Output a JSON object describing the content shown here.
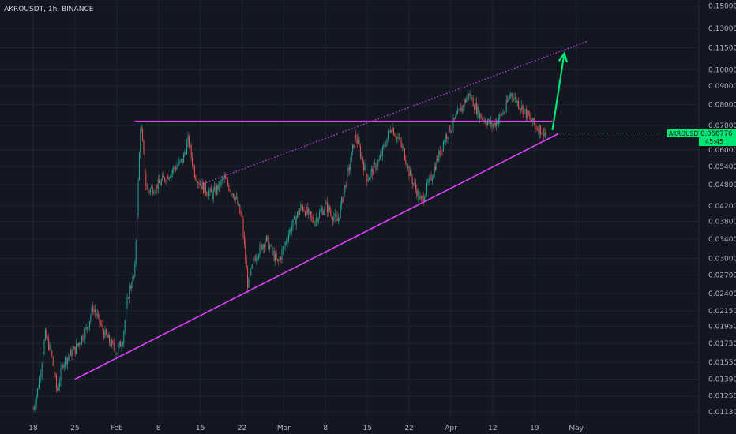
{
  "header": {
    "symbol_label": "AKROUSDT, 1h, BINANCE"
  },
  "price_badge": {
    "symbol": "AKROUSDT",
    "price": "0.066776",
    "countdown": "45:45"
  },
  "colors": {
    "background": "#131722",
    "up_candle": "#26a69a",
    "down_candle": "#ef5350",
    "trendline": "#e040fb",
    "arrow": "#00e676",
    "badge": "#00e676",
    "axis_text": "#b2b5be"
  },
  "chart_data": {
    "type": "candlestick",
    "title": "",
    "symbol": "AKROUSDT",
    "timeframe": "1h",
    "exchange": "BINANCE",
    "xlabel": "",
    "ylabel": "",
    "y_scale": "log",
    "ylim": [
      0.01112,
      0.152
    ],
    "x_ticks": [
      "18",
      "25",
      "Feb",
      "8",
      "15",
      "22",
      "Mar",
      "8",
      "15",
      "22",
      "Apr",
      "12",
      "19",
      "May"
    ],
    "y_ticks": [
      "0.150000",
      "0.130000",
      "0.115000",
      "0.100000",
      "0.090000",
      "0.080000",
      "0.070000",
      "0.060000",
      "0.054000",
      "0.048000",
      "0.042000",
      "0.038000",
      "0.034000",
      "0.030000",
      "0.027000",
      "0.024000",
      "0.021500",
      "0.019500",
      "0.017500",
      "0.015500",
      "0.013900",
      "0.012500",
      "0.011300"
    ],
    "last_price": 0.066776,
    "price_path": [
      {
        "date": "Jan 18",
        "price": 0.0115
      },
      {
        "date": "Jan 19",
        "price": 0.0135
      },
      {
        "date": "Jan 20",
        "price": 0.0185
      },
      {
        "date": "Jan 21",
        "price": 0.0165
      },
      {
        "date": "Jan 22",
        "price": 0.0128
      },
      {
        "date": "Jan 23",
        "price": 0.0155
      },
      {
        "date": "Jan 25",
        "price": 0.0168
      },
      {
        "date": "Jan 27",
        "price": 0.0192
      },
      {
        "date": "Jan 28",
        "price": 0.022
      },
      {
        "date": "Jan 30",
        "price": 0.0185
      },
      {
        "date": "Feb 1",
        "price": 0.0165
      },
      {
        "date": "Feb 2",
        "price": 0.018
      },
      {
        "date": "Feb 3",
        "price": 0.0245
      },
      {
        "date": "Feb 4",
        "price": 0.027
      },
      {
        "date": "Feb 5",
        "price": 0.072
      },
      {
        "date": "Feb 6",
        "price": 0.046
      },
      {
        "date": "Feb 8",
        "price": 0.048
      },
      {
        "date": "Feb 10",
        "price": 0.052
      },
      {
        "date": "Feb 12",
        "price": 0.056
      },
      {
        "date": "Feb 13",
        "price": 0.064
      },
      {
        "date": "Feb 14",
        "price": 0.052
      },
      {
        "date": "Feb 15",
        "price": 0.048
      },
      {
        "date": "Feb 17",
        "price": 0.045
      },
      {
        "date": "Feb 19",
        "price": 0.05
      },
      {
        "date": "Feb 21",
        "price": 0.044
      },
      {
        "date": "Feb 22",
        "price": 0.038
      },
      {
        "date": "Feb 23",
        "price": 0.025
      },
      {
        "date": "Feb 24",
        "price": 0.03
      },
      {
        "date": "Feb 26",
        "price": 0.034
      },
      {
        "date": "Feb 28",
        "price": 0.029
      },
      {
        "date": "Mar 2",
        "price": 0.036
      },
      {
        "date": "Mar 4",
        "price": 0.042
      },
      {
        "date": "Mar 6",
        "price": 0.038
      },
      {
        "date": "Mar 8",
        "price": 0.042
      },
      {
        "date": "Mar 10",
        "price": 0.038
      },
      {
        "date": "Mar 12",
        "price": 0.054
      },
      {
        "date": "Mar 13",
        "price": 0.066
      },
      {
        "date": "Mar 15",
        "price": 0.05
      },
      {
        "date": "Mar 17",
        "price": 0.056
      },
      {
        "date": "Mar 19",
        "price": 0.07
      },
      {
        "date": "Mar 21",
        "price": 0.06
      },
      {
        "date": "Mar 22",
        "price": 0.052
      },
      {
        "date": "Mar 24",
        "price": 0.043
      },
      {
        "date": "Mar 26",
        "price": 0.052
      },
      {
        "date": "Mar 28",
        "price": 0.065
      },
      {
        "date": "Mar 30",
        "price": 0.074
      },
      {
        "date": "Apr 1",
        "price": 0.086
      },
      {
        "date": "Apr 3",
        "price": 0.074
      },
      {
        "date": "Apr 5",
        "price": 0.07
      },
      {
        "date": "Apr 7",
        "price": 0.077
      },
      {
        "date": "Apr 8",
        "price": 0.086
      },
      {
        "date": "Apr 10",
        "price": 0.078
      },
      {
        "date": "Apr 11",
        "price": 0.074
      },
      {
        "date": "Apr 12",
        "price": 0.07
      },
      {
        "date": "Apr 14",
        "price": 0.0668
      }
    ],
    "annotations": [
      {
        "type": "horizontal_resistance",
        "price": 0.072,
        "from": "Feb 4",
        "to": "Apr 15"
      },
      {
        "type": "support_trendline",
        "from": {
          "date": "Jan 25",
          "price": 0.0139
        },
        "to": {
          "date": "Apr 16",
          "price": 0.0665
        }
      },
      {
        "type": "upper_channel_dotted",
        "from": {
          "date": "Feb 15",
          "price": 0.048
        },
        "to": {
          "date": "Apr 21",
          "price": 0.12
        }
      },
      {
        "type": "projection_arrow",
        "from": {
          "date": "Apr 15",
          "price": 0.068
        },
        "to": {
          "date": "Apr 17",
          "price": 0.111
        }
      }
    ]
  }
}
